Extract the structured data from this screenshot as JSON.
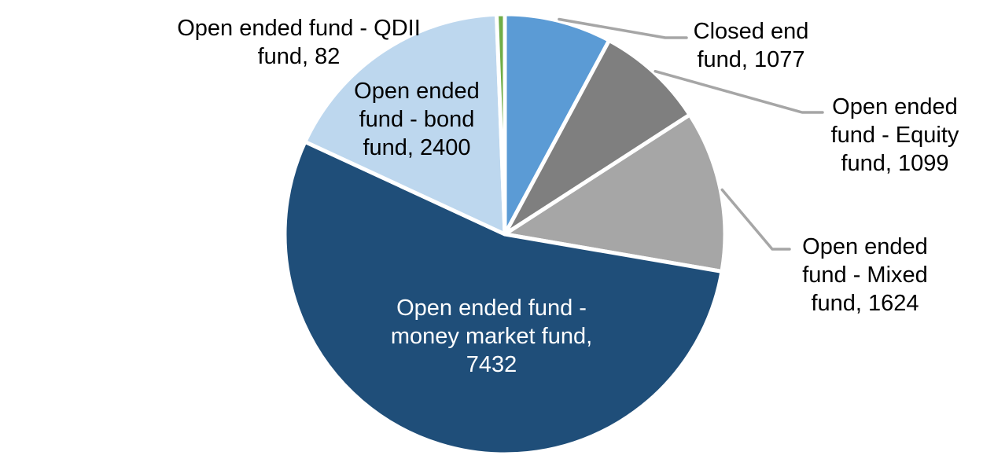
{
  "chart_data": {
    "type": "pie",
    "title": "",
    "start_angle_deg": 0,
    "direction": "clockwise",
    "background": "#FFFFFF",
    "leader_line_color": "#A6A6A6",
    "outside_label_color": "#000000",
    "inside_label_color": "#FFFFFF",
    "slice_border_color": "#FFFFFF",
    "series": [
      {
        "name": "Closed end fund",
        "value": 1077,
        "color": "#5B9BD5",
        "label_lines": [
          "Closed end",
          "fund, 1077"
        ]
      },
      {
        "name": "Open ended fund - Equity fund",
        "value": 1099,
        "color": "#7F7F7F",
        "label_lines": [
          "Open ended",
          "fund - Equity",
          "fund, 1099"
        ]
      },
      {
        "name": "Open ended fund - Mixed fund",
        "value": 1624,
        "color": "#A6A6A6",
        "label_lines": [
          "Open ended",
          "fund - Mixed",
          "fund, 1624"
        ]
      },
      {
        "name": "Open ended fund - money market fund",
        "value": 7432,
        "color": "#1F4E79",
        "label_lines": [
          "Open ended fund -",
          "money market fund,",
          "7432"
        ]
      },
      {
        "name": "Open ended fund - bond fund",
        "value": 2400,
        "color": "#BDD7EE",
        "label_lines": [
          "Open ended",
          "fund - bond",
          "fund, 2400"
        ]
      },
      {
        "name": "Open ended fund - QDII fund",
        "value": 82,
        "color": "#70AD47",
        "label_lines": [
          "Open ended fund - QDII",
          "fund, 82"
        ]
      }
    ]
  }
}
